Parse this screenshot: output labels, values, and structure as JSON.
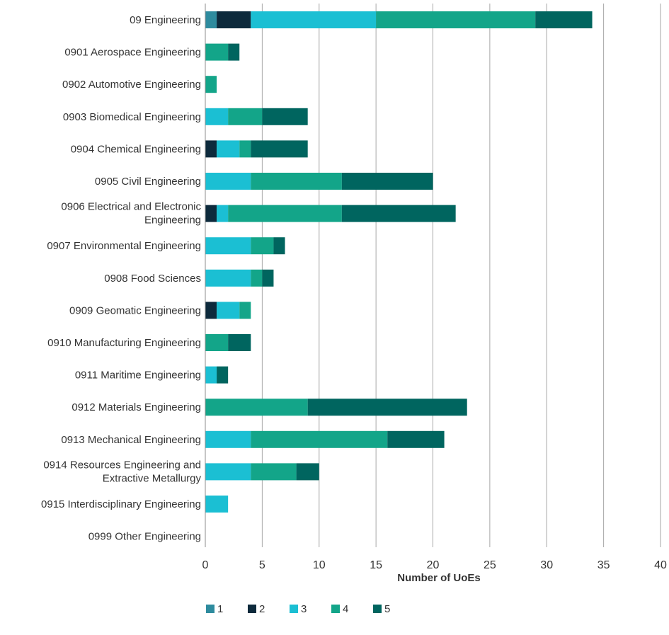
{
  "chart_data": {
    "type": "bar",
    "orientation": "horizontal",
    "stacked": true,
    "title": "",
    "xlabel": "Number of UoEs",
    "ylabel": "",
    "xlim": [
      0,
      40
    ],
    "xticks": [
      0,
      5,
      10,
      15,
      20,
      25,
      30,
      35,
      40
    ],
    "grid": "vertical",
    "legend_position": "bottom-left",
    "categories": [
      [
        "09 Engineering"
      ],
      [
        "0901 Aerospace Engineering"
      ],
      [
        "0902 Automotive Engineering"
      ],
      [
        "0903 Biomedical Engineering"
      ],
      [
        "0904 Chemical Engineering"
      ],
      [
        "0905 Civil Engineering"
      ],
      [
        "0906 Electrical and Electronic",
        "Engineering"
      ],
      [
        "0907 Environmental Engineering"
      ],
      [
        "0908 Food Sciences"
      ],
      [
        "0909 Geomatic Engineering"
      ],
      [
        "0910 Manufacturing Engineering"
      ],
      [
        "0911 Maritime Engineering"
      ],
      [
        "0912 Materials Engineering"
      ],
      [
        "0913 Mechanical Engineering"
      ],
      [
        "0914 Resources Engineering and",
        "Extractive Metallurgy"
      ],
      [
        "0915 Interdisciplinary Engineering"
      ],
      [
        "0999 Other Engineering"
      ]
    ],
    "series": [
      {
        "name": "1",
        "color": "#2e8b9e",
        "values": [
          1,
          0,
          0,
          0,
          0,
          0,
          0,
          0,
          0,
          0,
          0,
          0,
          0,
          0,
          0,
          0,
          0
        ]
      },
      {
        "name": "2",
        "color": "#0d2a3c",
        "values": [
          3,
          0,
          0,
          0,
          1,
          0,
          1,
          0,
          0,
          1,
          0,
          0,
          0,
          0,
          0,
          0,
          0
        ]
      },
      {
        "name": "3",
        "color": "#1bbfd3",
        "values": [
          11,
          0,
          0,
          2,
          2,
          4,
          1,
          4,
          4,
          2,
          0,
          1,
          0,
          4,
          4,
          2,
          0
        ]
      },
      {
        "name": "4",
        "color": "#13a589",
        "values": [
          14,
          2,
          1,
          3,
          1,
          8,
          10,
          2,
          1,
          1,
          2,
          0,
          9,
          12,
          4,
          0,
          0
        ]
      },
      {
        "name": "5",
        "color": "#00655f",
        "values": [
          5,
          1,
          0,
          4,
          5,
          8,
          10,
          1,
          1,
          0,
          2,
          1,
          14,
          5,
          2,
          0,
          0
        ]
      }
    ]
  }
}
